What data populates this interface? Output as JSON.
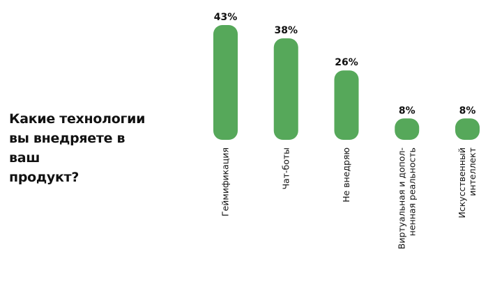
{
  "question": {
    "lines": [
      "Какие технологии",
      "вы внедряете в ваш",
      "продукт?"
    ]
  },
  "colors": {
    "bar": "#56a85a",
    "text": "#111111"
  },
  "chart_data": {
    "type": "bar",
    "categories": [
      [
        "Геймификация"
      ],
      [
        "Чат-боты"
      ],
      [
        "Не внедряю"
      ],
      [
        "Виртуальная и допол-",
        "ненная реальность"
      ],
      [
        "Искусственный",
        "интеллект"
      ]
    ],
    "values": [
      43,
      38,
      26,
      8,
      8
    ],
    "value_labels": [
      "43%",
      "38%",
      "26%",
      "8%",
      "8%"
    ],
    "ylim": [
      0,
      43
    ],
    "grid": false,
    "legend": "none"
  }
}
